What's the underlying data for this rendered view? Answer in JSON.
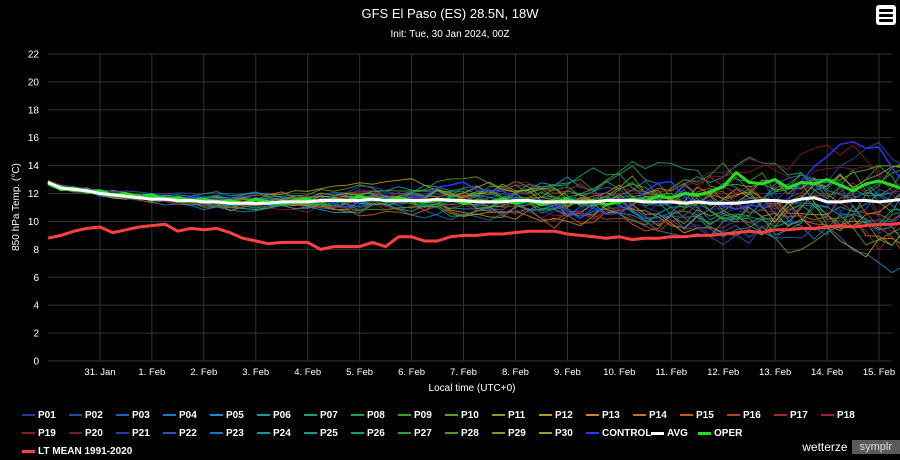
{
  "header": {
    "title": "GFS El Paso (ES) 28.5N, 18W",
    "subtitle": "Init: Tue, 30 Jan 2024, 00Z"
  },
  "credits": {
    "main": "wetterze",
    "secondary": "symplr"
  },
  "chart_data": {
    "type": "line",
    "title": "GFS El Paso (ES) 28.5N, 18W",
    "subtitle": "Init: Tue, 30 Jan 2024, 00Z",
    "xlabel": "Local time (UTC+0)",
    "ylabel": "850 hPa Temp. (°C)",
    "ylim": [
      0,
      22
    ],
    "y_ticks": [
      0,
      2,
      4,
      6,
      8,
      10,
      12,
      14,
      16,
      18,
      20,
      22
    ],
    "x_range": [
      "30 Jan 00Z",
      "15 Feb 06Z"
    ],
    "x_step_hours": 6,
    "x_ticks": [
      {
        "label": "31. Jan",
        "hour": 24
      },
      {
        "label": "1. Feb",
        "hour": 48
      },
      {
        "label": "2. Feb",
        "hour": 72
      },
      {
        "label": "3. Feb",
        "hour": 96
      },
      {
        "label": "4. Feb",
        "hour": 120
      },
      {
        "label": "5. Feb",
        "hour": 144
      },
      {
        "label": "6. Feb",
        "hour": 168
      },
      {
        "label": "7. Feb",
        "hour": 192
      },
      {
        "label": "8. Feb",
        "hour": 216
      },
      {
        "label": "9. Feb",
        "hour": 240
      },
      {
        "label": "10. Feb",
        "hour": 264
      },
      {
        "label": "11. Feb",
        "hour": 288
      },
      {
        "label": "12. Feb",
        "hour": 312
      },
      {
        "label": "13. Feb",
        "hour": 336
      },
      {
        "label": "14. Feb",
        "hour": 360
      },
      {
        "label": "15. Feb",
        "hour": 384
      }
    ],
    "grid": true,
    "legend_position": "bottom",
    "highlight_series": [
      {
        "name": "AVG",
        "color": "#ffffff",
        "values": [
          12.8,
          12.4,
          12.3,
          12.2,
          12.0,
          11.9,
          11.8,
          11.7,
          11.6,
          11.6,
          11.5,
          11.5,
          11.4,
          11.4,
          11.3,
          11.3,
          11.3,
          11.3,
          11.4,
          11.4,
          11.4,
          11.5,
          11.5,
          11.5,
          11.5,
          11.6,
          11.5,
          11.5,
          11.5,
          11.5,
          11.6,
          11.5,
          11.5,
          11.4,
          11.4,
          11.4,
          11.5,
          11.5,
          11.4,
          11.4,
          11.4,
          11.4,
          11.4,
          11.5,
          11.5,
          11.5,
          11.4,
          11.4,
          11.4,
          11.3,
          11.4,
          11.3,
          11.3,
          11.3,
          11.4,
          11.5,
          11.5,
          11.4,
          11.6,
          11.7,
          11.4,
          11.4,
          11.5,
          11.5,
          11.4,
          11.5,
          11.6,
          11.5,
          11.9,
          11.7,
          11.8,
          11.9,
          12.1,
          12.2,
          12.3,
          12.4,
          12.5,
          12.4,
          12.6,
          12.7,
          12.7,
          12.6,
          12.8,
          12.8
        ]
      },
      {
        "name": "OPER",
        "color": "#22e022",
        "values": [
          12.7,
          12.3,
          12.4,
          12.1,
          12.2,
          11.9,
          12.0,
          11.8,
          11.9,
          11.6,
          11.7,
          11.5,
          11.6,
          11.4,
          11.5,
          11.3,
          11.6,
          11.4,
          11.3,
          11.5,
          11.6,
          11.4,
          11.6,
          11.5,
          11.8,
          11.6,
          11.5,
          11.7,
          11.5,
          11.4,
          11.5,
          11.6,
          11.3,
          11.5,
          11.4,
          11.6,
          11.3,
          11.5,
          11.2,
          11.4,
          11.6,
          11.3,
          11.5,
          11.2,
          11.4,
          11.6,
          11.5,
          11.8,
          11.7,
          12.0,
          11.9,
          12.1,
          12.5,
          13.5,
          12.8,
          12.7,
          13.0,
          12.4,
          12.8,
          12.7,
          13.0,
          12.6,
          12.2,
          12.7,
          12.9,
          12.6,
          12.3,
          12.8,
          13.2,
          13.7,
          13.4,
          13.6,
          13.9,
          13.8,
          14.0,
          14.5,
          14.3,
          14.6,
          14.9,
          15.2,
          15.4,
          15.5,
          15.6,
          15.9
        ]
      },
      {
        "name": "LT MEAN 1991-2020",
        "color": "#ff4040",
        "values": [
          8.8,
          9.0,
          9.3,
          9.5,
          9.6,
          9.2,
          9.4,
          9.6,
          9.7,
          9.8,
          9.3,
          9.5,
          9.4,
          9.5,
          9.2,
          8.8,
          8.6,
          8.4,
          8.5,
          8.5,
          8.5,
          8.0,
          8.2,
          8.2,
          8.2,
          8.5,
          8.2,
          8.9,
          8.9,
          8.6,
          8.6,
          8.9,
          9.0,
          9.0,
          9.1,
          9.1,
          9.2,
          9.3,
          9.3,
          9.3,
          9.1,
          9.0,
          8.9,
          8.8,
          8.9,
          8.7,
          8.8,
          8.8,
          8.9,
          8.9,
          9.0,
          9.0,
          9.1,
          9.2,
          9.3,
          9.2,
          9.4,
          9.4,
          9.5,
          9.5,
          9.6,
          9.7,
          9.6,
          9.7,
          9.8,
          9.8,
          9.9,
          9.9,
          9.8,
          9.8,
          9.8,
          9.7,
          9.7,
          9.7,
          9.6,
          9.6,
          9.6,
          9.5,
          9.5,
          9.4,
          9.4,
          9.3,
          9.3,
          9.3
        ]
      }
    ],
    "highlight_values_note": "",
    "ensemble_series": [
      {
        "name": "P01",
        "color": "#1f3a9e"
      },
      {
        "name": "P02",
        "color": "#1d4ea8"
      },
      {
        "name": "P03",
        "color": "#1f64b8"
      },
      {
        "name": "P04",
        "color": "#1c7ac0"
      },
      {
        "name": "P05",
        "color": "#1a8ec6"
      },
      {
        "name": "P06",
        "color": "#1a9a9a"
      },
      {
        "name": "P07",
        "color": "#1aa07a"
      },
      {
        "name": "P08",
        "color": "#20a050"
      },
      {
        "name": "P09",
        "color": "#3a9c2a"
      },
      {
        "name": "P10",
        "color": "#5a9c20"
      },
      {
        "name": "P11",
        "color": "#8a9c20"
      },
      {
        "name": "P12",
        "color": "#b89a1c"
      },
      {
        "name": "P13",
        "color": "#c48a1c"
      },
      {
        "name": "P14",
        "color": "#c8741c"
      },
      {
        "name": "P15",
        "color": "#c85a1c"
      },
      {
        "name": "P16",
        "color": "#b83e20"
      },
      {
        "name": "P17",
        "color": "#a82a28"
      },
      {
        "name": "P18",
        "color": "#982030"
      },
      {
        "name": "P19",
        "color": "#8a1c1c"
      },
      {
        "name": "P20",
        "color": "#6a1c3a"
      },
      {
        "name": "P21",
        "color": "#2a3aa8"
      },
      {
        "name": "P22",
        "color": "#2258b8"
      },
      {
        "name": "P23",
        "color": "#1e76c2"
      },
      {
        "name": "P24",
        "color": "#1c90b0"
      },
      {
        "name": "P25",
        "color": "#1a9c8a"
      },
      {
        "name": "P26",
        "color": "#1ca064"
      },
      {
        "name": "P27",
        "color": "#2aa03a"
      },
      {
        "name": "P28",
        "color": "#4a9c24"
      },
      {
        "name": "P29",
        "color": "#7a9c20"
      },
      {
        "name": "P30",
        "color": "#a89a1c"
      },
      {
        "name": "CONTROL",
        "color": "#2a3aff"
      }
    ],
    "legend_rows": [
      [
        "P01",
        "P02",
        "P03",
        "P04",
        "P05",
        "P06",
        "P07",
        "P08",
        "P09",
        "P10",
        "P11",
        "P12",
        "P13",
        "P14",
        "P15",
        "P16",
        "P17",
        "P18"
      ],
      [
        "P19",
        "P20",
        "P21",
        "P22",
        "P23",
        "P24",
        "P25",
        "P26",
        "P27",
        "P28",
        "P29",
        "P30",
        "CONTROL",
        "AVG",
        "OPER"
      ],
      [
        "LT MEAN 1991-2020"
      ]
    ]
  }
}
